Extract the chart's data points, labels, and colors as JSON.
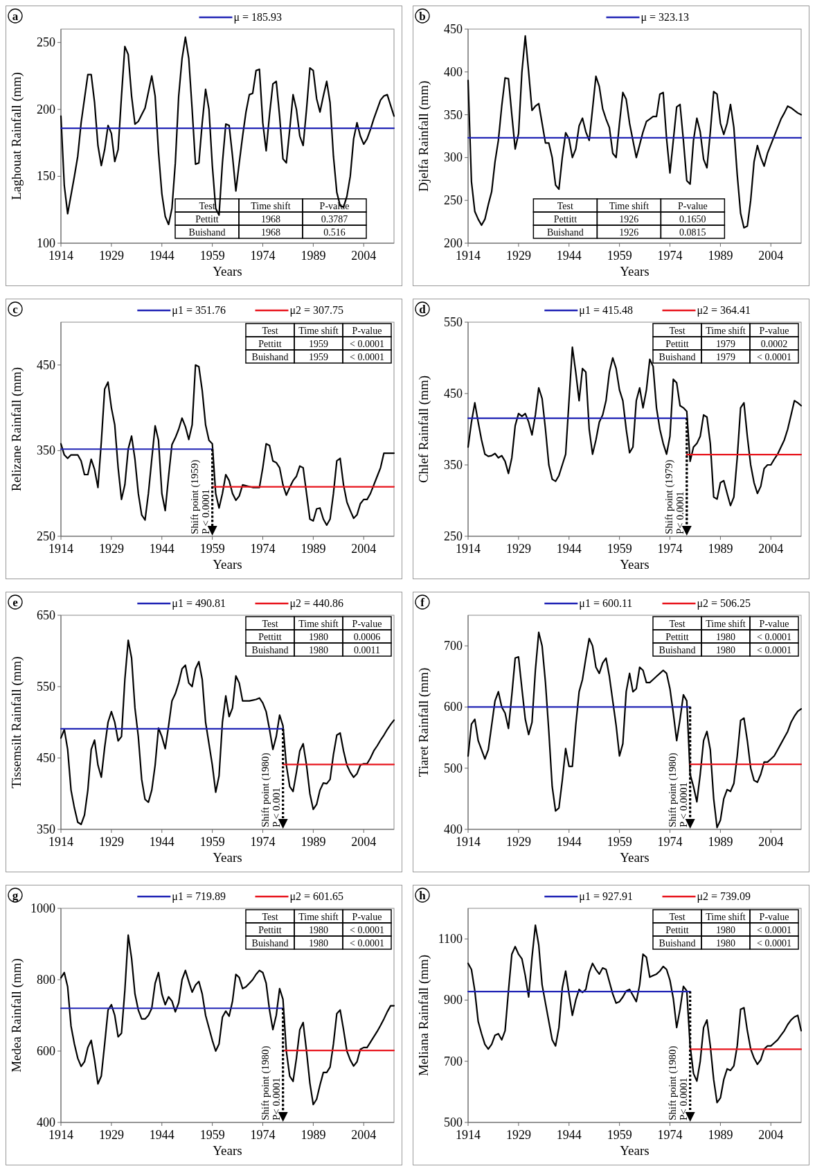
{
  "chart_data": [
    {
      "type": "line",
      "title": "a",
      "xlabel": "Years",
      "ylabel": "Laghouat Rainfall (mm)",
      "xlim": [
        1914,
        2013
      ],
      "xticks": [
        1914,
        1929,
        1944,
        1959,
        1974,
        1989,
        2004
      ],
      "ylim": [
        100,
        260
      ],
      "yticks": [
        100,
        150,
        200,
        250
      ],
      "legend": "top",
      "x": [
        1914,
        1915,
        1916,
        1917,
        1918,
        1919,
        1920,
        1921,
        1922,
        1923,
        1924,
        1925,
        1926,
        1927,
        1928,
        1929,
        1930,
        1931,
        1932,
        1933,
        1934,
        1935,
        1936,
        1937,
        1938,
        1939,
        1940,
        1941,
        1942,
        1943,
        1944,
        1945,
        1946,
        1947,
        1948,
        1949,
        1950,
        1951,
        1952,
        1953,
        1954,
        1955,
        1956,
        1957,
        1958,
        1959,
        1960,
        1961,
        1962,
        1963,
        1964,
        1965,
        1966,
        1967,
        1968,
        1969,
        1970,
        1971,
        1972,
        1973,
        1974,
        1975,
        1976,
        1977,
        1978,
        1979,
        1980,
        1981,
        1982,
        1983,
        1984,
        1985,
        1986,
        1987,
        1988,
        1989,
        1990,
        1991,
        1992,
        1993,
        1994,
        1995,
        1996,
        1997,
        1998,
        1999,
        2000,
        2001,
        2002,
        2003,
        2004,
        2005,
        2006,
        2007,
        2008,
        2009,
        2010,
        2011,
        2012,
        2013
      ],
      "series": [
        {
          "color": "#000000",
          "values": [
            195,
            143,
            122,
            136,
            150,
            165,
            190,
            208,
            226,
            226,
            205,
            173,
            158,
            170,
            188,
            182,
            161,
            170,
            210,
            247,
            241,
            210,
            189,
            191,
            196,
            201,
            213,
            225,
            210,
            168,
            137,
            120,
            114,
            126,
            160,
            210,
            238,
            254,
            238,
            200,
            159,
            160,
            190,
            215,
            200,
            158,
            126,
            121,
            160,
            189,
            188,
            165,
            139,
            160,
            180,
            198,
            211,
            212,
            229,
            230,
            190,
            169,
            196,
            219,
            221,
            195,
            163,
            160,
            185,
            211,
            200,
            180,
            173,
            200,
            231,
            229,
            208,
            198,
            210,
            221,
            205,
            165,
            138,
            128,
            127,
            135,
            150,
            178,
            190,
            180,
            174,
            178,
            185,
            193,
            200,
            207,
            210,
            211,
            203,
            195
          ]
        },
        {
          "name": "μ = 185.93",
          "color": "#1f23b5",
          "x": [
            1914,
            2013
          ],
          "values": [
            185.93,
            185.93
          ]
        }
      ],
      "annotations": [
        "Test",
        "Time shift",
        "P-value",
        "Pettitt",
        "1968",
        "0.3787",
        "Buishand",
        "1968",
        "0.516"
      ]
    },
    {
      "type": "line",
      "title": "b",
      "xlabel": "Years",
      "ylabel": "Djelfa Rainfall (mm)",
      "xlim": [
        1914,
        2013
      ],
      "xticks": [
        1914,
        1929,
        1944,
        1959,
        1974,
        1989,
        2004
      ],
      "ylim": [
        200,
        450
      ],
      "yticks": [
        200,
        250,
        300,
        350,
        400,
        450
      ],
      "legend": "top",
      "x": [
        1914,
        1915,
        1916,
        1917,
        1918,
        1919,
        1920,
        1921,
        1922,
        1923,
        1924,
        1925,
        1926,
        1927,
        1928,
        1929,
        1930,
        1931,
        1932,
        1933,
        1934,
        1935,
        1936,
        1937,
        1938,
        1939,
        1940,
        1941,
        1942,
        1943,
        1944,
        1945,
        1946,
        1947,
        1948,
        1949,
        1950,
        1951,
        1952,
        1953,
        1954,
        1955,
        1956,
        1957,
        1958,
        1959,
        1960,
        1961,
        1962,
        1963,
        1964,
        1965,
        1966,
        1967,
        1968,
        1969,
        1970,
        1971,
        1972,
        1973,
        1974,
        1975,
        1976,
        1977,
        1978,
        1979,
        1980,
        1981,
        1982,
        1983,
        1984,
        1985,
        1986,
        1987,
        1988,
        1989,
        1990,
        1991,
        1992,
        1993,
        1994,
        1995,
        1996,
        1997,
        1998,
        1999,
        2000,
        2001,
        2002,
        2003,
        2004,
        2005,
        2006,
        2007,
        2008,
        2009,
        2010,
        2011,
        2012,
        2013
      ],
      "series": [
        {
          "color": "#000000",
          "values": [
            390,
            272,
            237,
            228,
            221,
            228,
            245,
            260,
            295,
            320,
            360,
            393,
            392,
            350,
            310,
            328,
            400,
            442,
            400,
            355,
            360,
            363,
            340,
            317,
            317,
            300,
            268,
            263,
            300,
            329,
            322,
            300,
            310,
            337,
            346,
            330,
            320,
            357,
            395,
            383,
            357,
            345,
            335,
            305,
            300,
            340,
            376,
            368,
            340,
            320,
            300,
            315,
            330,
            342,
            345,
            348,
            348,
            374,
            376,
            322,
            282,
            320,
            359,
            362,
            320,
            273,
            269,
            320,
            346,
            330,
            298,
            288,
            330,
            377,
            374,
            340,
            327,
            340,
            362,
            335,
            280,
            235,
            218,
            220,
            250,
            295,
            314,
            300,
            290,
            305,
            315,
            325,
            335,
            345,
            352,
            360,
            358,
            355,
            352,
            350
          ]
        },
        {
          "name": "μ = 323.13",
          "color": "#1f23b5",
          "x": [
            1914,
            2013
          ],
          "values": [
            323.13,
            323.13
          ]
        }
      ],
      "annotations": [
        "Test",
        "Time shift",
        "P-value",
        "Pettitt",
        "1926",
        "0.1650",
        "Buishand",
        "1926",
        "0.0815"
      ]
    },
    {
      "type": "line",
      "title": "c",
      "xlabel": "Years",
      "ylabel": "Relizane Rainfall (mm)",
      "xlim": [
        1914,
        2013
      ],
      "xticks": [
        1914,
        1929,
        1944,
        1959,
        1974,
        1989,
        2004
      ],
      "ylim": [
        250,
        500
      ],
      "yticks": [
        250,
        350,
        450
      ],
      "legend": "top",
      "x": [
        1914,
        1915,
        1916,
        1917,
        1918,
        1919,
        1920,
        1921,
        1922,
        1923,
        1924,
        1925,
        1926,
        1927,
        1928,
        1929,
        1930,
        1931,
        1932,
        1933,
        1934,
        1935,
        1936,
        1937,
        1938,
        1939,
        1940,
        1941,
        1942,
        1943,
        1944,
        1945,
        1946,
        1947,
        1948,
        1949,
        1950,
        1951,
        1952,
        1953,
        1954,
        1955,
        1956,
        1957,
        1958,
        1959,
        1960,
        1961,
        1962,
        1963,
        1964,
        1965,
        1966,
        1967,
        1968,
        1969,
        1970,
        1971,
        1972,
        1973,
        1974,
        1975,
        1976,
        1977,
        1978,
        1979,
        1980,
        1981,
        1982,
        1983,
        1984,
        1985,
        1986,
        1987,
        1988,
        1989,
        1990,
        1991,
        1992,
        1993,
        1994,
        1995,
        1996,
        1997,
        1998,
        1999,
        2000,
        2001,
        2002,
        2003,
        2004,
        2005,
        2006,
        2007,
        2008,
        2009,
        2010,
        2011,
        2012,
        2013
      ],
      "series": [
        {
          "color": "#000000",
          "values": [
            358,
            345,
            341,
            345,
            345,
            345,
            338,
            322,
            322,
            340,
            328,
            307,
            360,
            422,
            430,
            400,
            380,
            330,
            293,
            310,
            352,
            367,
            340,
            300,
            275,
            269,
            300,
            340,
            379,
            362,
            300,
            280,
            320,
            357,
            365,
            375,
            388,
            378,
            363,
            380,
            450,
            448,
            420,
            380,
            362,
            358,
            300,
            283,
            300,
            322,
            315,
            300,
            292,
            297,
            310,
            309,
            308,
            307,
            307,
            307,
            330,
            358,
            356,
            338,
            336,
            330,
            310,
            298,
            307,
            315,
            320,
            332,
            330,
            300,
            270,
            268,
            282,
            283,
            270,
            263,
            270,
            300,
            338,
            341,
            310,
            290,
            280,
            271,
            275,
            288,
            293,
            293,
            300,
            310,
            320,
            330,
            347,
            347,
            347,
            347
          ]
        },
        {
          "name": "μ1 = 351.76",
          "color": "#1f23b5",
          "x": [
            1914,
            1959
          ],
          "values": [
            351.76,
            351.76
          ]
        },
        {
          "name": "μ2 = 307.75",
          "color": "#e8141c",
          "x": [
            1959,
            2013
          ],
          "values": [
            307.75,
            307.75
          ]
        }
      ],
      "annotations": [
        "Test",
        "Time shift",
        "P-value",
        "Pettitt",
        "1959",
        "< 0.0001",
        "Buishand",
        "1959",
        "< 0.0001",
        {
          "text": "Shift point (1959)",
          "x": 1959,
          "y": 351.76
        },
        {
          "text": "P < 0.0001",
          "x": 1959,
          "y": 351.76
        }
      ]
    },
    {
      "type": "line",
      "title": "d",
      "xlabel": "Years",
      "ylabel": "Chlef Rainfall (mm)",
      "xlim": [
        1914,
        2013
      ],
      "xticks": [
        1914,
        1929,
        1944,
        1959,
        1974,
        1989,
        2004
      ],
      "ylim": [
        250,
        550
      ],
      "yticks": [
        250,
        350,
        450,
        550
      ],
      "legend": "top",
      "x": [
        1914,
        1915,
        1916,
        1917,
        1918,
        1919,
        1920,
        1921,
        1922,
        1923,
        1924,
        1925,
        1926,
        1927,
        1928,
        1929,
        1930,
        1931,
        1932,
        1933,
        1934,
        1935,
        1936,
        1937,
        1938,
        1939,
        1940,
        1941,
        1942,
        1943,
        1944,
        1945,
        1946,
        1947,
        1948,
        1949,
        1950,
        1951,
        1952,
        1953,
        1954,
        1955,
        1956,
        1957,
        1958,
        1959,
        1960,
        1961,
        1962,
        1963,
        1964,
        1965,
        1966,
        1967,
        1968,
        1969,
        1970,
        1971,
        1972,
        1973,
        1974,
        1975,
        1976,
        1977,
        1978,
        1979,
        1980,
        1981,
        1982,
        1983,
        1984,
        1985,
        1986,
        1987,
        1988,
        1989,
        1990,
        1991,
        1992,
        1993,
        1994,
        1995,
        1996,
        1997,
        1998,
        1999,
        2000,
        2001,
        2002,
        2003,
        2004,
        2005,
        2006,
        2007,
        2008,
        2009,
        2010,
        2011,
        2012,
        2013
      ],
      "series": [
        {
          "color": "#000000",
          "values": [
            375,
            410,
            437,
            410,
            385,
            365,
            362,
            363,
            366,
            360,
            363,
            355,
            338,
            360,
            405,
            422,
            418,
            422,
            410,
            392,
            420,
            458,
            443,
            400,
            350,
            330,
            327,
            335,
            350,
            365,
            440,
            515,
            480,
            440,
            485,
            480,
            400,
            365,
            385,
            410,
            420,
            440,
            480,
            500,
            485,
            455,
            440,
            400,
            367,
            375,
            440,
            458,
            430,
            455,
            498,
            488,
            430,
            400,
            380,
            365,
            390,
            470,
            465,
            433,
            430,
            425,
            355,
            375,
            380,
            390,
            420,
            417,
            380,
            305,
            302,
            325,
            328,
            310,
            293,
            305,
            360,
            430,
            437,
            390,
            350,
            325,
            310,
            320,
            345,
            350,
            350,
            358,
            365,
            375,
            385,
            400,
            420,
            440,
            437,
            433
          ]
        },
        {
          "name": "μ1 = 415.48",
          "color": "#1f23b5",
          "x": [
            1914,
            1979
          ],
          "values": [
            415.48,
            415.48
          ]
        },
        {
          "name": "μ2 = 364.41",
          "color": "#e8141c",
          "x": [
            1979,
            2013
          ],
          "values": [
            364.41,
            364.41
          ]
        }
      ],
      "annotations": [
        "Test",
        "Time shift",
        "P-value",
        "Pettitt",
        "1979",
        "0.0002",
        "Buishand",
        "1979",
        "< 0.0001",
        {
          "text": "Shift point (1979)",
          "x": 1979,
          "y": 415.48
        },
        {
          "text": "P< 0.0001",
          "x": 1979,
          "y": 415.48
        }
      ]
    },
    {
      "type": "line",
      "title": "e",
      "xlabel": "Years",
      "ylabel": "Tissemsilt Rainfall (mm)",
      "xlim": [
        1914,
        2013
      ],
      "xticks": [
        1914,
        1929,
        1944,
        1959,
        1974,
        1989,
        2004
      ],
      "ylim": [
        350,
        650
      ],
      "yticks": [
        350,
        450,
        550,
        650
      ],
      "legend": "top",
      "x": [
        1914,
        1915,
        1916,
        1917,
        1918,
        1919,
        1920,
        1921,
        1922,
        1923,
        1924,
        1925,
        1926,
        1927,
        1928,
        1929,
        1930,
        1931,
        1932,
        1933,
        1934,
        1935,
        1936,
        1937,
        1938,
        1939,
        1940,
        1941,
        1942,
        1943,
        1944,
        1945,
        1946,
        1947,
        1948,
        1949,
        1950,
        1951,
        1952,
        1953,
        1954,
        1955,
        1956,
        1957,
        1958,
        1959,
        1960,
        1961,
        1962,
        1963,
        1964,
        1965,
        1966,
        1967,
        1968,
        1969,
        1970,
        1971,
        1972,
        1973,
        1974,
        1975,
        1976,
        1977,
        1978,
        1979,
        1980,
        1981,
        1982,
        1983,
        1984,
        1985,
        1986,
        1987,
        1988,
        1989,
        1990,
        1991,
        1992,
        1993,
        1994,
        1995,
        1996,
        1997,
        1998,
        1999,
        2000,
        2001,
        2002,
        2003,
        2004,
        2005,
        2006,
        2007,
        2008,
        2009,
        2010,
        2011,
        2012,
        2013
      ],
      "series": [
        {
          "color": "#000000",
          "values": [
            478,
            490,
            462,
            405,
            380,
            360,
            357,
            370,
            405,
            462,
            475,
            440,
            423,
            465,
            500,
            515,
            500,
            474,
            480,
            560,
            615,
            590,
            520,
            480,
            420,
            392,
            388,
            405,
            440,
            492,
            480,
            463,
            495,
            530,
            540,
            555,
            575,
            580,
            555,
            550,
            575,
            585,
            560,
            500,
            470,
            440,
            402,
            425,
            500,
            537,
            508,
            520,
            565,
            555,
            530,
            530,
            530,
            531,
            532,
            534,
            527,
            515,
            490,
            462,
            480,
            510,
            495,
            440,
            410,
            403,
            430,
            460,
            470,
            440,
            400,
            378,
            385,
            405,
            415,
            414,
            420,
            455,
            482,
            485,
            460,
            440,
            430,
            423,
            428,
            440,
            442,
            442,
            450,
            460,
            467,
            475,
            482,
            490,
            497,
            503
          ]
        },
        {
          "name": "μ1 = 490.81",
          "color": "#1f23b5",
          "x": [
            1914,
            1980
          ],
          "values": [
            490.81,
            490.81
          ]
        },
        {
          "name": "μ2 = 440.86",
          "color": "#e8141c",
          "x": [
            1980,
            2013
          ],
          "values": [
            440.86,
            440.86
          ]
        }
      ],
      "annotations": [
        "Test",
        "Time shift",
        "P-value",
        "Pettitt",
        "1980",
        "0.0006",
        "Buishand",
        "1980",
        "0.0011",
        {
          "text": "Shift point (1980)",
          "x": 1980,
          "y": 490.81
        },
        {
          "text": "P < 0.001",
          "x": 1980,
          "y": 490.81
        }
      ]
    },
    {
      "type": "line",
      "title": "f",
      "xlabel": "Years",
      "ylabel": "Tiaret Rainfall (mm)",
      "xlim": [
        1914,
        2013
      ],
      "xticks": [
        1914,
        1929,
        1944,
        1959,
        1974,
        1989,
        2004
      ],
      "ylim": [
        400,
        750
      ],
      "yticks": [
        400,
        500,
        600,
        700
      ],
      "legend": "top",
      "x": [
        1914,
        1915,
        1916,
        1917,
        1918,
        1919,
        1920,
        1921,
        1922,
        1923,
        1924,
        1925,
        1926,
        1927,
        1928,
        1929,
        1930,
        1931,
        1932,
        1933,
        1934,
        1935,
        1936,
        1937,
        1938,
        1939,
        1940,
        1941,
        1942,
        1943,
        1944,
        1945,
        1946,
        1947,
        1948,
        1949,
        1950,
        1951,
        1952,
        1953,
        1954,
        1955,
        1956,
        1957,
        1958,
        1959,
        1960,
        1961,
        1962,
        1963,
        1964,
        1965,
        1966,
        1967,
        1968,
        1969,
        1970,
        1971,
        1972,
        1973,
        1974,
        1975,
        1976,
        1977,
        1978,
        1979,
        1980,
        1981,
        1982,
        1983,
        1984,
        1985,
        1986,
        1987,
        1988,
        1989,
        1990,
        1991,
        1992,
        1993,
        1994,
        1995,
        1996,
        1997,
        1998,
        1999,
        2000,
        2001,
        2002,
        2003,
        2004,
        2005,
        2006,
        2007,
        2008,
        2009,
        2010,
        2011,
        2012,
        2013
      ],
      "series": [
        {
          "color": "#000000",
          "values": [
            520,
            572,
            580,
            545,
            530,
            515,
            530,
            570,
            610,
            625,
            600,
            590,
            565,
            620,
            680,
            682,
            630,
            580,
            555,
            575,
            660,
            722,
            700,
            640,
            560,
            470,
            430,
            435,
            480,
            532,
            503,
            503,
            570,
            625,
            645,
            680,
            712,
            700,
            665,
            655,
            672,
            680,
            650,
            610,
            570,
            520,
            540,
            625,
            655,
            625,
            630,
            665,
            660,
            640,
            640,
            645,
            650,
            655,
            660,
            655,
            630,
            590,
            545,
            580,
            620,
            610,
            490,
            470,
            445,
            490,
            545,
            560,
            530,
            450,
            403,
            415,
            450,
            465,
            462,
            475,
            520,
            578,
            582,
            545,
            500,
            480,
            477,
            490,
            510,
            510,
            515,
            520,
            530,
            540,
            550,
            560,
            575,
            585,
            593,
            597
          ]
        },
        {
          "name": "μ1 = 600.11",
          "color": "#1f23b5",
          "x": [
            1914,
            1980
          ],
          "values": [
            600.11,
            600.11
          ]
        },
        {
          "name": "μ2 = 506.25",
          "color": "#e8141c",
          "x": [
            1980,
            2013
          ],
          "values": [
            506.25,
            506.25
          ]
        }
      ],
      "annotations": [
        "Test",
        "Time shift",
        "P-value",
        "Pettitt",
        "1980",
        "< 0.0001",
        "Buishand",
        "1980",
        "< 0.0001",
        {
          "text": "Shift point (1980)",
          "x": 1980,
          "y": 600.11
        },
        {
          "text": "P < 0.0001",
          "x": 1980,
          "y": 600.11
        }
      ]
    },
    {
      "type": "line",
      "title": "g",
      "xlabel": "Years",
      "ylabel": "Medea Rainfall (mm)",
      "xlim": [
        1914,
        2013
      ],
      "xticks": [
        1914,
        1929,
        1944,
        1959,
        1974,
        1989,
        2004
      ],
      "ylim": [
        400,
        1000
      ],
      "yticks": [
        400,
        600,
        800,
        1000
      ],
      "legend": "top",
      "x": [
        1914,
        1915,
        1916,
        1917,
        1918,
        1919,
        1920,
        1921,
        1922,
        1923,
        1924,
        1925,
        1926,
        1927,
        1928,
        1929,
        1930,
        1931,
        1932,
        1933,
        1934,
        1935,
        1936,
        1937,
        1938,
        1939,
        1940,
        1941,
        1942,
        1943,
        1944,
        1945,
        1946,
        1947,
        1948,
        1949,
        1950,
        1951,
        1952,
        1953,
        1954,
        1955,
        1956,
        1957,
        1958,
        1959,
        1960,
        1961,
        1962,
        1963,
        1964,
        1965,
        1966,
        1967,
        1968,
        1969,
        1970,
        1971,
        1972,
        1973,
        1974,
        1975,
        1976,
        1977,
        1978,
        1979,
        1980,
        1981,
        1982,
        1983,
        1984,
        1985,
        1986,
        1987,
        1988,
        1989,
        1990,
        1991,
        1992,
        1993,
        1994,
        1995,
        1996,
        1997,
        1998,
        1999,
        2000,
        2001,
        2002,
        2003,
        2004,
        2005,
        2006,
        2007,
        2008,
        2009,
        2010,
        2011,
        2012,
        2013
      ],
      "series": [
        {
          "color": "#000000",
          "values": [
            805,
            820,
            780,
            670,
            620,
            580,
            557,
            570,
            610,
            630,
            575,
            508,
            530,
            620,
            715,
            730,
            700,
            640,
            650,
            770,
            925,
            860,
            760,
            715,
            690,
            690,
            700,
            720,
            790,
            820,
            760,
            730,
            752,
            740,
            710,
            735,
            800,
            826,
            795,
            765,
            785,
            795,
            760,
            700,
            665,
            630,
            600,
            620,
            695,
            712,
            698,
            740,
            815,
            806,
            775,
            780,
            790,
            800,
            815,
            826,
            820,
            790,
            715,
            660,
            700,
            775,
            745,
            600,
            530,
            515,
            580,
            660,
            680,
            600,
            510,
            450,
            465,
            505,
            540,
            540,
            555,
            620,
            705,
            715,
            660,
            600,
            575,
            558,
            570,
            605,
            610,
            610,
            625,
            640,
            655,
            672,
            690,
            710,
            727,
            727
          ]
        },
        {
          "name": "μ1 = 719.89",
          "color": "#1f23b5",
          "x": [
            1914,
            1980
          ],
          "values": [
            719.89,
            719.89
          ]
        },
        {
          "name": "μ2 = 601.65",
          "color": "#e8141c",
          "x": [
            1980,
            2013
          ],
          "values": [
            601.65,
            601.65
          ]
        }
      ],
      "annotations": [
        "Test",
        "Time shift",
        "P-value",
        "Pettitt",
        "1980",
        "< 0.0001",
        "Buishand",
        "1980",
        "< 0.0001",
        {
          "text": "Shift point (1980)",
          "x": 1980,
          "y": 719.89
        },
        {
          "text": "P< 0.0001",
          "x": 1980,
          "y": 719.89
        }
      ]
    },
    {
      "type": "line",
      "title": "h",
      "xlabel": "Years",
      "ylabel": "Meliana Rainfall (mm)",
      "xlim": [
        1914,
        2013
      ],
      "xticks": [
        1914,
        1929,
        1944,
        1959,
        1974,
        1989,
        2004
      ],
      "ylim": [
        500,
        1200
      ],
      "yticks": [
        500,
        700,
        900,
        1100
      ],
      "legend": "top",
      "x": [
        1914,
        1915,
        1916,
        1917,
        1918,
        1919,
        1920,
        1921,
        1922,
        1923,
        1924,
        1925,
        1926,
        1927,
        1928,
        1929,
        1930,
        1931,
        1932,
        1933,
        1934,
        1935,
        1936,
        1937,
        1938,
        1939,
        1940,
        1941,
        1942,
        1943,
        1944,
        1945,
        1946,
        1947,
        1948,
        1949,
        1950,
        1951,
        1952,
        1953,
        1954,
        1955,
        1956,
        1957,
        1958,
        1959,
        1960,
        1961,
        1962,
        1963,
        1964,
        1965,
        1966,
        1967,
        1968,
        1969,
        1970,
        1971,
        1972,
        1973,
        1974,
        1975,
        1976,
        1977,
        1978,
        1979,
        1980,
        1981,
        1982,
        1983,
        1984,
        1985,
        1986,
        1987,
        1988,
        1989,
        1990,
        1991,
        1992,
        1993,
        1994,
        1995,
        1996,
        1997,
        1998,
        1999,
        2000,
        2001,
        2002,
        2003,
        2004,
        2005,
        2006,
        2007,
        2008,
        2009,
        2010,
        2011,
        2012,
        2013
      ],
      "series": [
        {
          "color": "#000000",
          "values": [
            1020,
            1000,
            930,
            830,
            790,
            755,
            740,
            755,
            785,
            790,
            770,
            800,
            930,
            1050,
            1075,
            1050,
            1035,
            980,
            910,
            1040,
            1145,
            1080,
            950,
            890,
            830,
            770,
            750,
            810,
            940,
            995,
            920,
            850,
            900,
            935,
            925,
            935,
            990,
            1020,
            1000,
            985,
            1005,
            1000,
            960,
            920,
            890,
            895,
            910,
            930,
            935,
            915,
            895,
            950,
            1050,
            1040,
            975,
            980,
            985,
            995,
            1010,
            1000,
            965,
            905,
            810,
            870,
            945,
            930,
            750,
            660,
            635,
            700,
            810,
            835,
            750,
            640,
            565,
            580,
            640,
            675,
            670,
            685,
            750,
            870,
            875,
            800,
            740,
            710,
            690,
            705,
            740,
            750,
            750,
            760,
            770,
            785,
            800,
            820,
            835,
            845,
            850,
            800
          ]
        },
        {
          "name": "μ1 = 927.91",
          "color": "#1f23b5",
          "x": [
            1914,
            1980
          ],
          "values": [
            927.91,
            927.91
          ]
        },
        {
          "name": "μ2 = 739.09",
          "color": "#e8141c",
          "x": [
            1980,
            2013
          ],
          "values": [
            739.09,
            739.09
          ]
        }
      ],
      "annotations": [
        "Test",
        "Time shift",
        "P-value",
        "Pettitt",
        "1980",
        "< 0.0001",
        "Buishand",
        "1980",
        "< 0.0001",
        {
          "text": "Shift point (1980)",
          "x": 1980,
          "y": 927.91
        },
        {
          "text": "P< 0.0001",
          "x": 1980,
          "y": 927.91
        }
      ]
    }
  ]
}
